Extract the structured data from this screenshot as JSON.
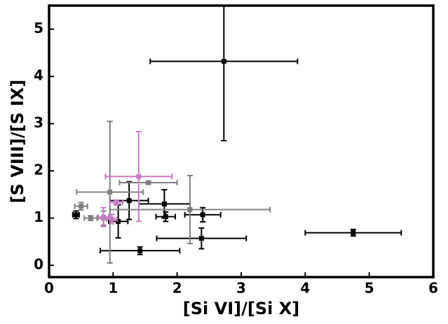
{
  "chart_data": {
    "type": "scatter",
    "xlabel": "[Si VI]/[Si X]",
    "ylabel": "[S VIII]/[S IX]",
    "xlim": [
      0,
      6
    ],
    "ylim": [
      -0.25,
      5.5
    ],
    "xticks": [
      0,
      1,
      2,
      3,
      4,
      5,
      6
    ],
    "yticks": [
      0,
      1,
      2,
      3,
      4,
      5
    ],
    "series": [
      {
        "color": "#000000",
        "x": [
          2.73,
          4.75,
          1.42,
          2.38,
          2.4,
          1.8,
          1.82,
          1.25,
          1.08,
          0.42
        ],
        "values": [
          4.32,
          0.69,
          0.31,
          0.57,
          1.07,
          1.3,
          1.03,
          1.37,
          0.93,
          1.07
        ],
        "xerr": [
          1.15,
          0.75,
          0.62,
          0.7,
          0.28,
          0.4,
          0.15,
          0.3,
          0.15,
          0.05
        ],
        "yerr": [
          1.68,
          0.07,
          0.08,
          0.22,
          0.15,
          0.3,
          0.1,
          0.4,
          0.35,
          0.08
        ]
      },
      {
        "color": "#808080",
        "x": [
          0.95,
          1.55,
          2.2,
          0.5,
          0.65,
          0.85
        ],
        "values": [
          1.55,
          1.75,
          1.18,
          1.25,
          1.0,
          1.0
        ],
        "xerr": [
          0.52,
          0.45,
          1.25,
          0.1,
          0.1,
          0.1
        ],
        "yerr": [
          1.5,
          0.03,
          0.72,
          0.08,
          0.05,
          0.15
        ]
      },
      {
        "color": "#c77cc2",
        "x": [
          1.4,
          1.05,
          0.85,
          0.98
        ],
        "values": [
          1.88,
          1.33,
          1.02,
          0.98
        ],
        "xerr": [
          0.52,
          0.1,
          0.08,
          0.08
        ],
        "yerr": [
          0.95,
          0.05,
          0.2,
          0.1
        ]
      }
    ]
  }
}
